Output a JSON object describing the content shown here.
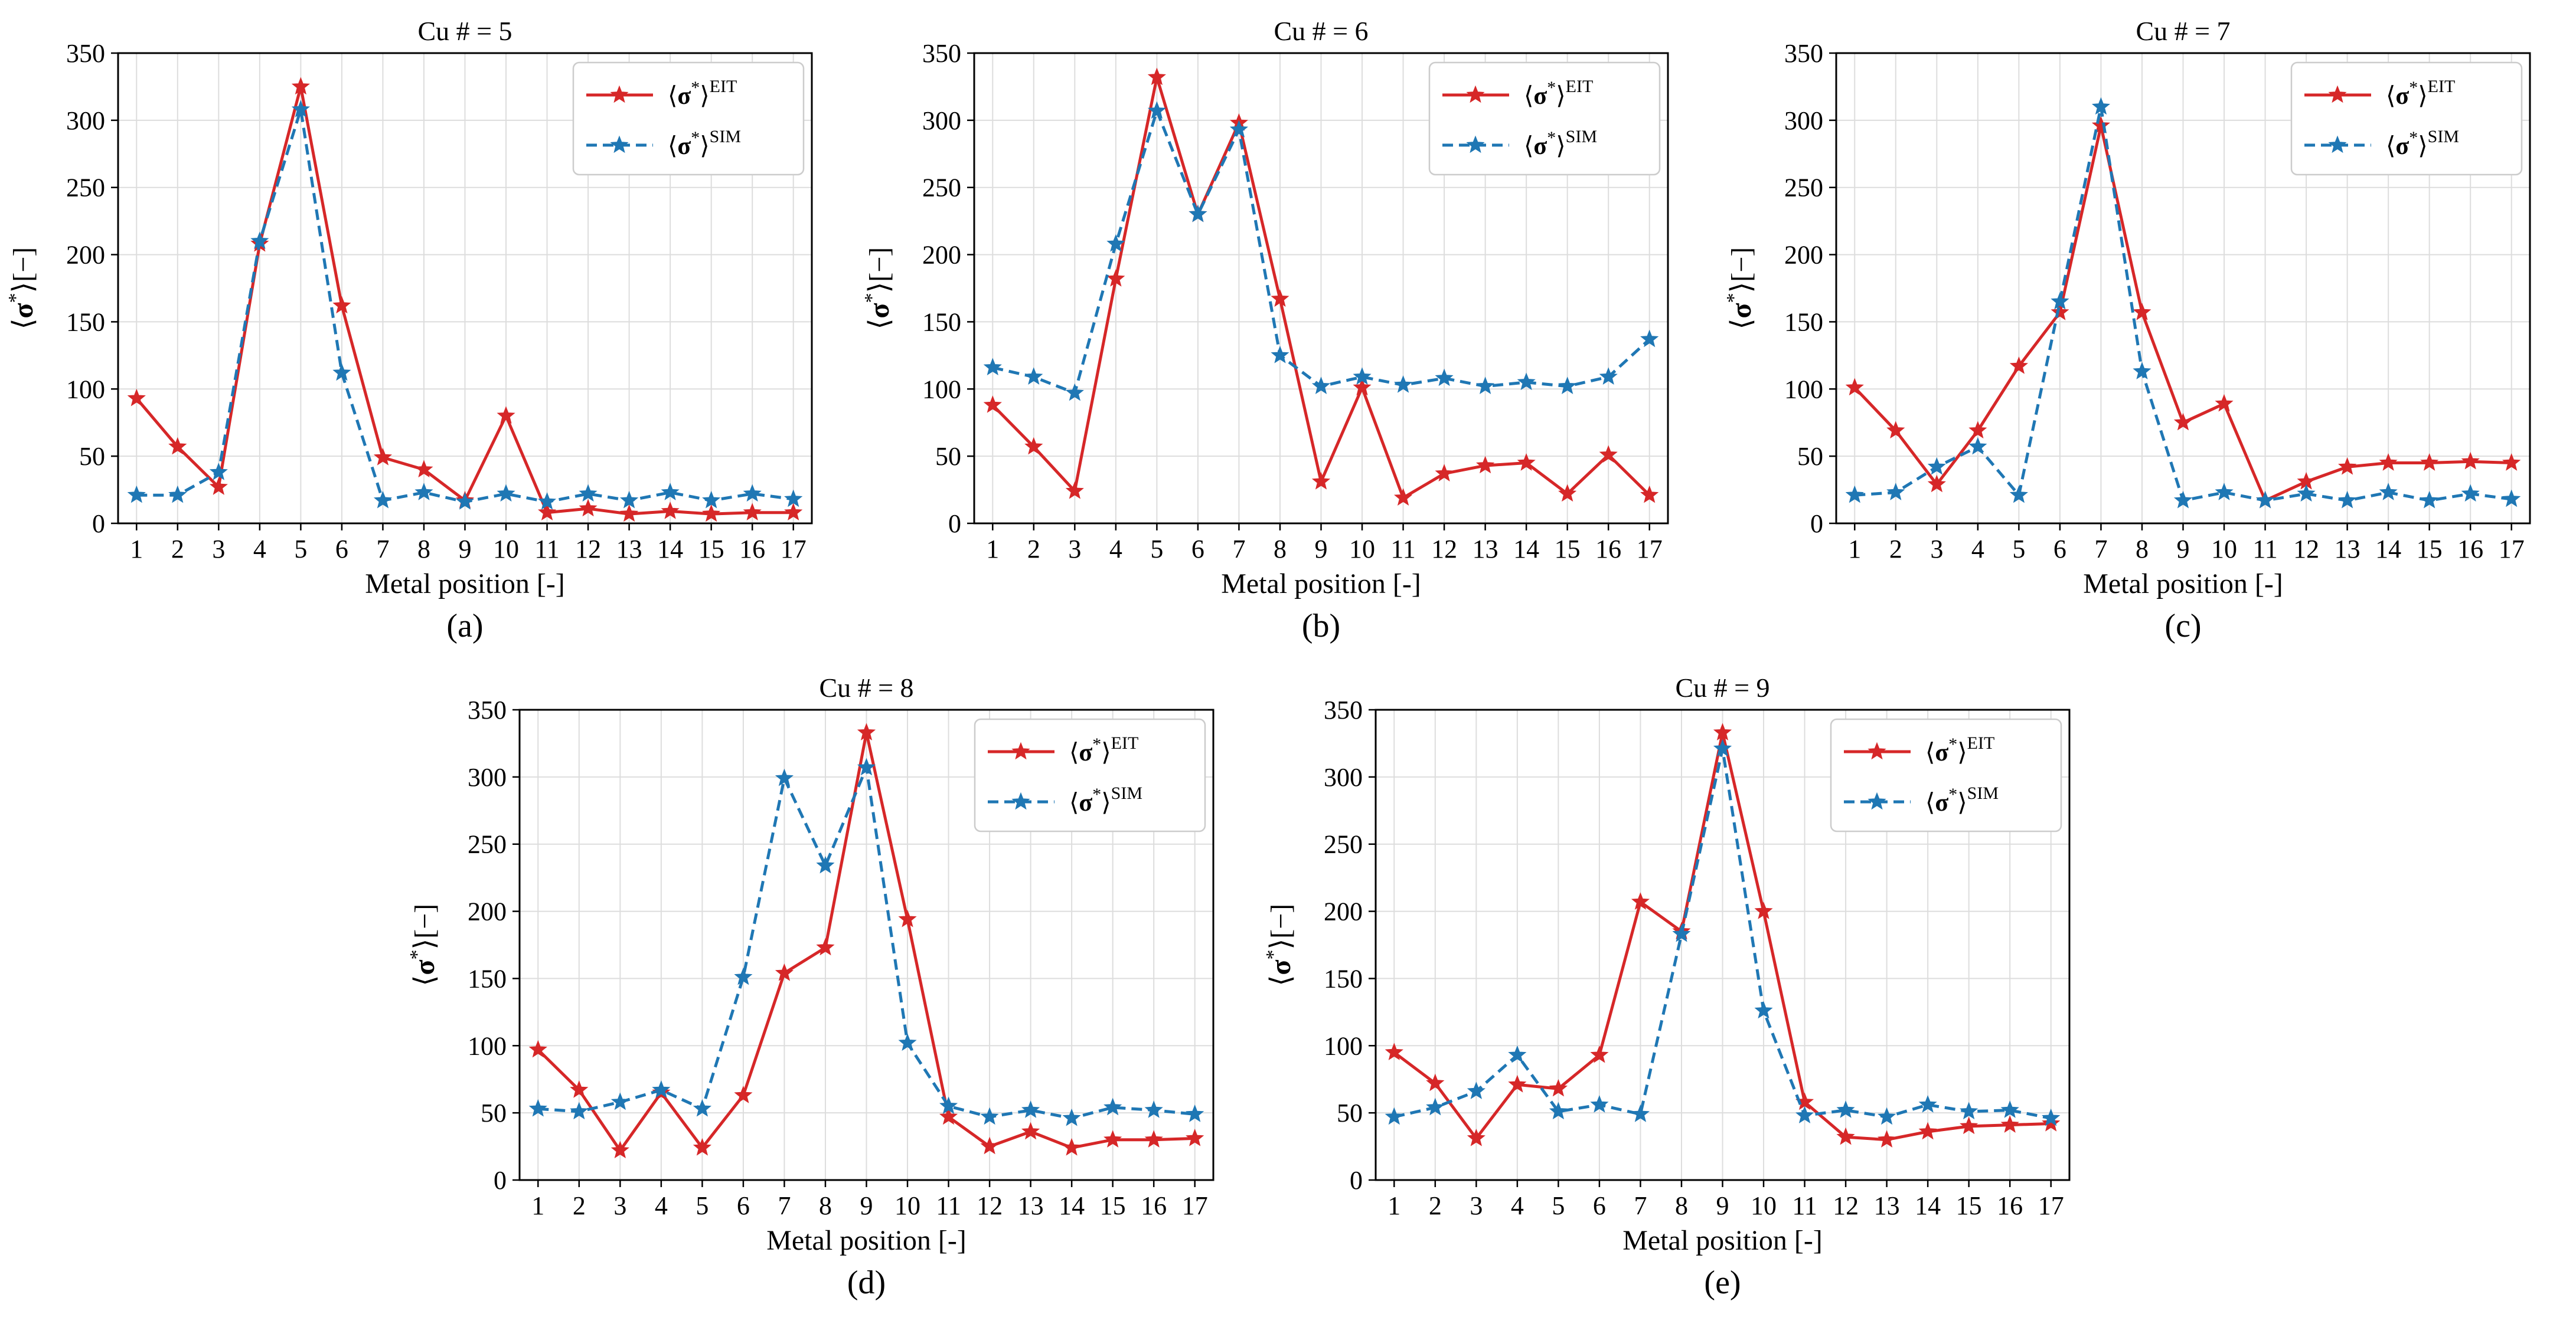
{
  "figure": {
    "colors": {
      "eit": "#d62728",
      "sim": "#1f77b4",
      "grid": "#dddddd",
      "axis": "#000000"
    },
    "legend": {
      "eit_label": "⟨σ*⟩EIT",
      "sim_label": "⟨σ*⟩SIM"
    }
  },
  "chart_data": [
    {
      "type": "line",
      "title": "Cu # = 5",
      "panel_label": "(a)",
      "xlabel": "Metal position [-]",
      "ylabel": "⟨σ*⟩[−]",
      "ylim": [
        0,
        350
      ],
      "yticks": [
        0,
        50,
        100,
        150,
        200,
        250,
        300,
        350
      ],
      "x": [
        1,
        2,
        3,
        4,
        5,
        6,
        7,
        8,
        9,
        10,
        11,
        12,
        13,
        14,
        15,
        16,
        17
      ],
      "grid": true,
      "legend_position": "top-right",
      "series": [
        {
          "name": "⟨σ*⟩EIT",
          "style": "solid",
          "values": [
            93,
            57,
            27,
            208,
            325,
            162,
            49,
            40,
            17,
            80,
            8,
            11,
            7,
            9,
            7,
            8,
            8
          ]
        },
        {
          "name": "⟨σ*⟩SIM",
          "style": "dashed",
          "values": [
            21,
            21,
            38,
            210,
            308,
            112,
            17,
            23,
            16,
            22,
            16,
            22,
            17,
            23,
            17,
            22,
            18
          ]
        }
      ]
    },
    {
      "type": "line",
      "title": "Cu # = 6",
      "panel_label": "(b)",
      "xlabel": "Metal position [-]",
      "ylabel": "⟨σ*⟩[−]",
      "ylim": [
        0,
        350
      ],
      "yticks": [
        0,
        50,
        100,
        150,
        200,
        250,
        300,
        350
      ],
      "x": [
        1,
        2,
        3,
        4,
        5,
        6,
        7,
        8,
        9,
        10,
        11,
        12,
        13,
        14,
        15,
        16,
        17
      ],
      "grid": true,
      "legend_position": "top-right",
      "series": [
        {
          "name": "⟨σ*⟩EIT",
          "style": "solid",
          "values": [
            88,
            57,
            24,
            182,
            332,
            230,
            298,
            167,
            31,
            101,
            19,
            37,
            43,
            45,
            22,
            51,
            21
          ]
        },
        {
          "name": "⟨σ*⟩SIM",
          "style": "dashed",
          "values": [
            116,
            109,
            97,
            208,
            307,
            230,
            293,
            125,
            102,
            109,
            103,
            108,
            102,
            105,
            102,
            109,
            137
          ]
        }
      ]
    },
    {
      "type": "line",
      "title": "Cu # = 7",
      "panel_label": "(c)",
      "xlabel": "Metal position [-]",
      "ylabel": "⟨σ*⟩[−]",
      "ylim": [
        0,
        350
      ],
      "yticks": [
        0,
        50,
        100,
        150,
        200,
        250,
        300,
        350
      ],
      "x": [
        1,
        2,
        3,
        4,
        5,
        6,
        7,
        8,
        9,
        10,
        11,
        12,
        13,
        14,
        15,
        16,
        17
      ],
      "grid": true,
      "legend_position": "top-right",
      "series": [
        {
          "name": "⟨σ*⟩EIT",
          "style": "solid",
          "values": [
            101,
            69,
            29,
            69,
            117,
            157,
            296,
            157,
            75,
            89,
            17,
            31,
            42,
            45,
            45,
            46,
            45
          ]
        },
        {
          "name": "⟨σ*⟩SIM",
          "style": "dashed",
          "values": [
            21,
            23,
            42,
            57,
            21,
            165,
            310,
            113,
            17,
            23,
            17,
            22,
            17,
            23,
            17,
            22,
            18
          ]
        }
      ]
    },
    {
      "type": "line",
      "title": "Cu # = 8",
      "panel_label": "(d)",
      "xlabel": "Metal position [-]",
      "ylabel": "⟨σ*⟩[−]",
      "ylim": [
        0,
        350
      ],
      "yticks": [
        0,
        50,
        100,
        150,
        200,
        250,
        300,
        350
      ],
      "x": [
        1,
        2,
        3,
        4,
        5,
        6,
        7,
        8,
        9,
        10,
        11,
        12,
        13,
        14,
        15,
        16,
        17
      ],
      "grid": true,
      "legend_position": "top-right",
      "series": [
        {
          "name": "⟨σ*⟩EIT",
          "style": "solid",
          "values": [
            97,
            67,
            22,
            65,
            24,
            63,
            154,
            173,
            333,
            194,
            47,
            25,
            36,
            24,
            30,
            30,
            31
          ]
        },
        {
          "name": "⟨σ*⟩SIM",
          "style": "dashed",
          "values": [
            53,
            51,
            58,
            67,
            53,
            151,
            299,
            234,
            307,
            102,
            55,
            47,
            52,
            46,
            54,
            52,
            49
          ]
        }
      ]
    },
    {
      "type": "line",
      "title": "Cu # = 9",
      "panel_label": "(e)",
      "xlabel": "Metal position [-]",
      "ylabel": "⟨σ*⟩[−]",
      "ylim": [
        0,
        350
      ],
      "yticks": [
        0,
        50,
        100,
        150,
        200,
        250,
        300,
        350
      ],
      "x": [
        1,
        2,
        3,
        4,
        5,
        6,
        7,
        8,
        9,
        10,
        11,
        12,
        13,
        14,
        15,
        16,
        17
      ],
      "grid": true,
      "legend_position": "top-right",
      "series": [
        {
          "name": "⟨σ*⟩EIT",
          "style": "solid",
          "values": [
            95,
            72,
            31,
            71,
            68,
            93,
            207,
            185,
            333,
            200,
            58,
            32,
            30,
            36,
            40,
            41,
            42
          ]
        },
        {
          "name": "⟨σ*⟩SIM",
          "style": "dashed",
          "values": [
            47,
            54,
            66,
            93,
            51,
            56,
            49,
            183,
            321,
            126,
            48,
            52,
            47,
            56,
            51,
            52,
            46
          ]
        }
      ]
    }
  ]
}
